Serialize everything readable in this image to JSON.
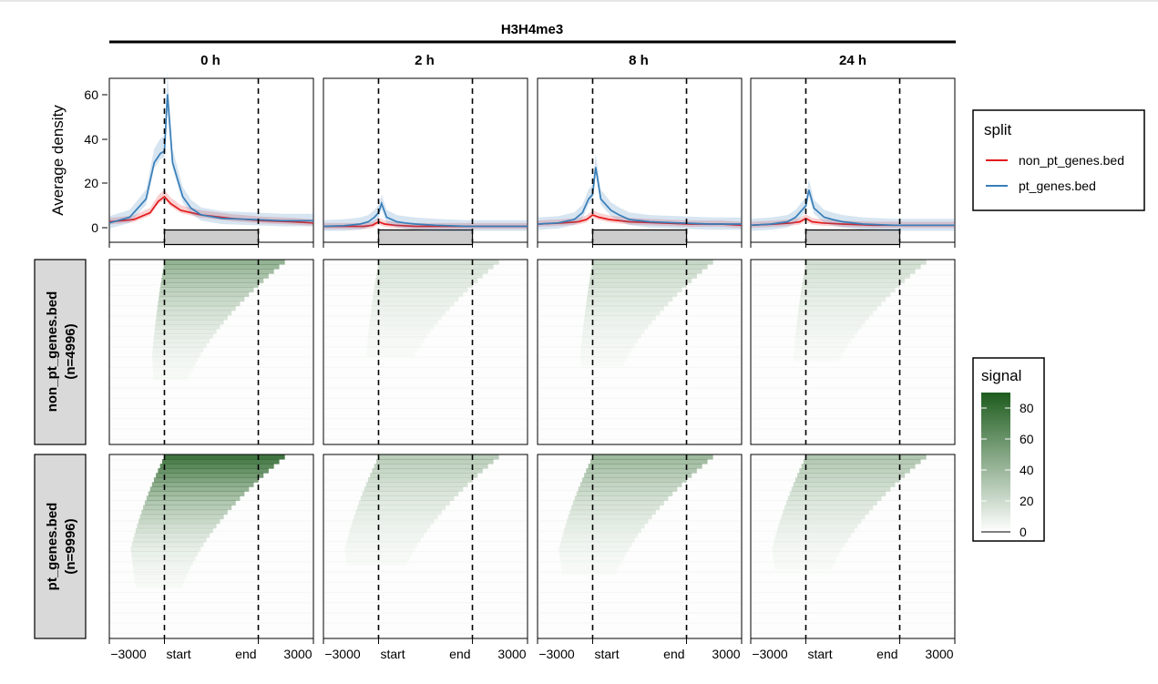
{
  "chart_data": {
    "type": "line",
    "title": "H3H4me3",
    "panels": [
      "0 h",
      "2 h",
      "8 h",
      "24 h"
    ],
    "ylabel": "Average density",
    "ylim": [
      -5,
      67
    ],
    "yticks": [
      0,
      20,
      40,
      60
    ],
    "xticks": [
      "−3000",
      "start",
      "end",
      "3000"
    ],
    "groups": [
      {
        "name": "non_pt_genes.bed",
        "n_label": "(n=4996)"
      },
      {
        "name": "pt_genes.bed",
        "n_label": "(n=9996)"
      }
    ],
    "series": [
      {
        "name": "non_pt_genes.bed",
        "color": "#e41a1c",
        "x": [
          0,
          0.12,
          0.2,
          0.24,
          0.27,
          0.3,
          0.35,
          0.45,
          0.6,
          0.75,
          0.9,
          1.0
        ],
        "panels": [
          [
            4,
            5,
            8,
            13,
            15,
            12,
            9,
            7,
            5.5,
            4.5,
            4,
            3.5
          ],
          [
            2,
            2,
            2,
            2.5,
            4,
            3,
            2.5,
            2,
            2,
            2,
            2,
            2
          ],
          [
            3,
            3.5,
            4,
            5,
            7,
            6,
            5,
            4,
            3.5,
            3,
            3,
            2.5
          ],
          [
            2.5,
            3,
            3.5,
            4,
            5.5,
            4,
            3.5,
            3,
            2.5,
            2.5,
            2.5,
            2.5
          ]
        ]
      },
      {
        "name": "pt_genes.bed",
        "color": "#377eb8",
        "x": [
          0,
          0.1,
          0.18,
          0.22,
          0.25,
          0.27,
          0.285,
          0.31,
          0.36,
          0.4,
          0.45,
          0.55,
          0.7,
          0.85,
          1.0
        ],
        "panels": [
          [
            3.5,
            6,
            14,
            30,
            34,
            35,
            60,
            30,
            15,
            10,
            7,
            5.5,
            5,
            4.5,
            4.5
          ],
          [
            2,
            2.3,
            3,
            4,
            6,
            8,
            12,
            6,
            4,
            3.5,
            3,
            2.5,
            2,
            2,
            2
          ],
          [
            3,
            3.5,
            5,
            8,
            14,
            16,
            28,
            14,
            9,
            7,
            5,
            4,
            3.5,
            3,
            3
          ],
          [
            2.5,
            3,
            4,
            6,
            9,
            11,
            18,
            10,
            6,
            5,
            4,
            3,
            2.5,
            2.5,
            2.5
          ]
        ]
      }
    ],
    "legend": {
      "title": "split",
      "placement": "right"
    },
    "heatmap": {
      "colorbar_title": "signal",
      "colorbar_ticks": [
        0,
        20,
        40,
        60,
        80
      ],
      "low_color": "#ffffff",
      "high_color": "#1e5c1e"
    }
  }
}
